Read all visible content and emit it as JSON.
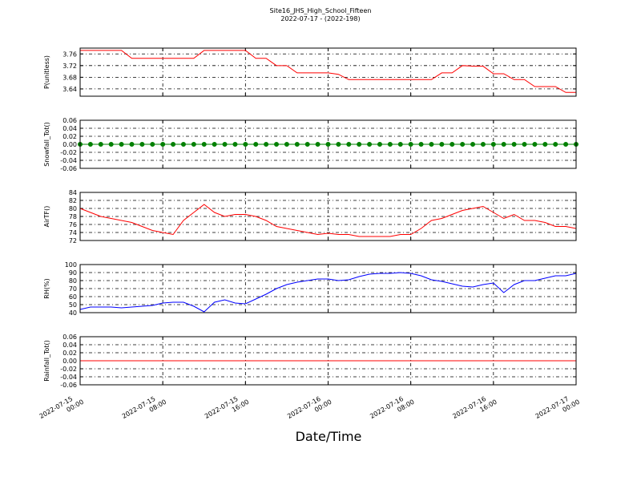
{
  "chart_data": {
    "type": "line",
    "title": "Site16_JHS_High_School_Fifteen",
    "subtitle": "2022-07-17 - (2022-198)",
    "xlabel": "Date/Time",
    "grid": true,
    "x": [
      "2022-07-15 00:00",
      "2022-07-15 01:00",
      "2022-07-15 02:00",
      "2022-07-15 03:00",
      "2022-07-15 04:00",
      "2022-07-15 05:00",
      "2022-07-15 06:00",
      "2022-07-15 07:00",
      "2022-07-15 08:00",
      "2022-07-15 09:00",
      "2022-07-15 10:00",
      "2022-07-15 11:00",
      "2022-07-15 12:00",
      "2022-07-15 13:00",
      "2022-07-15 14:00",
      "2022-07-15 15:00",
      "2022-07-15 16:00",
      "2022-07-15 17:00",
      "2022-07-15 18:00",
      "2022-07-15 19:00",
      "2022-07-15 20:00",
      "2022-07-15 21:00",
      "2022-07-15 22:00",
      "2022-07-15 23:00",
      "2022-07-16 00:00",
      "2022-07-16 01:00",
      "2022-07-16 02:00",
      "2022-07-16 03:00",
      "2022-07-16 04:00",
      "2022-07-16 05:00",
      "2022-07-16 06:00",
      "2022-07-16 07:00",
      "2022-07-16 08:00",
      "2022-07-16 09:00",
      "2022-07-16 10:00",
      "2022-07-16 11:00",
      "2022-07-16 12:00",
      "2022-07-16 13:00",
      "2022-07-16 14:00",
      "2022-07-16 15:00",
      "2022-07-16 16:00",
      "2022-07-16 17:00",
      "2022-07-16 18:00",
      "2022-07-16 19:00",
      "2022-07-16 20:00",
      "2022-07-16 21:00",
      "2022-07-16 22:00",
      "2022-07-16 23:00",
      "2022-07-17 00:00"
    ],
    "xlim": [
      "2022-07-15 00:00",
      "2022-07-17 00:00"
    ],
    "xticks": [
      {
        "value": "2022-07-15 00:00",
        "label": [
          "2022-07-15",
          "00:00"
        ]
      },
      {
        "value": "2022-07-15 08:00",
        "label": [
          "2022-07-15",
          "08:00"
        ]
      },
      {
        "value": "2022-07-15 16:00",
        "label": [
          "2022-07-15",
          "16:00"
        ]
      },
      {
        "value": "2022-07-16 00:00",
        "label": [
          "2022-07-16",
          "00:00"
        ]
      },
      {
        "value": "2022-07-16 08:00",
        "label": [
          "2022-07-16",
          "08:00"
        ]
      },
      {
        "value": "2022-07-16 16:00",
        "label": [
          "2022-07-16",
          "16:00"
        ]
      },
      {
        "value": "2022-07-17 00:00",
        "label": [
          "2022-07-17",
          "00:00"
        ]
      }
    ],
    "panels": [
      {
        "ylabel": "P(unitless)",
        "ylim": [
          3.615,
          3.78
        ],
        "yticks": [
          3.64,
          3.68,
          3.72,
          3.76
        ],
        "series": [
          {
            "color": "#ff0000",
            "values": [
              3.772,
              3.772,
              3.772,
              3.772,
              3.772,
              3.745,
              3.745,
              3.745,
              3.745,
              3.745,
              3.745,
              3.745,
              3.772,
              3.772,
              3.772,
              3.772,
              3.772,
              3.745,
              3.745,
              3.72,
              3.72,
              3.695,
              3.695,
              3.695,
              3.695,
              3.69,
              3.672,
              3.672,
              3.672,
              3.672,
              3.672,
              3.672,
              3.672,
              3.672,
              3.672,
              3.695,
              3.695,
              3.72,
              3.718,
              3.718,
              3.692,
              3.692,
              3.672,
              3.672,
              3.648,
              3.648,
              3.648,
              3.628,
              3.628
            ]
          }
        ]
      },
      {
        "ylabel": "Snowfall_Tot()",
        "ylim": [
          -0.06,
          0.06
        ],
        "yticks": [
          -0.06,
          -0.04,
          -0.02,
          {
            "value": 0,
            "label": "0.00"
          },
          0.02,
          0.04,
          0.06
        ],
        "series": [
          {
            "color": "#008000",
            "marker": "o",
            "values": [
              0,
              0,
              0,
              0,
              0,
              0,
              0,
              0,
              0,
              0,
              0,
              0,
              0,
              0,
              0,
              0,
              0,
              0,
              0,
              0,
              0,
              0,
              0,
              0,
              0,
              0,
              0,
              0,
              0,
              0,
              0,
              0,
              0,
              0,
              0,
              0,
              0,
              0,
              0,
              0,
              0,
              0,
              0,
              0,
              0,
              0,
              0,
              0,
              0
            ]
          }
        ]
      },
      {
        "ylabel": "AirTF()",
        "ylim": [
          72,
          84
        ],
        "yticks": [
          72,
          74,
          76,
          78,
          80,
          82,
          84
        ],
        "series": [
          {
            "color": "#ff0000",
            "values": [
              80,
              79,
              78,
              77.5,
              77,
              76.5,
              75.5,
              74.5,
              74,
              73.5,
              77,
              79,
              81,
              79,
              78,
              78.5,
              78.5,
              78,
              77,
              75.5,
              75,
              74.5,
              74,
              73.5,
              73.8,
              73.5,
              73.5,
              73,
              73,
              73,
              73,
              73.5,
              73.5,
              75,
              77,
              77.5,
              78.5,
              79.5,
              80,
              80.5,
              79,
              77.5,
              78.5,
              77,
              77,
              76.5,
              75.5,
              75.5,
              75
            ]
          }
        ]
      },
      {
        "ylabel": "RH(%)",
        "ylim": [
          40,
          100
        ],
        "yticks": [
          40,
          50,
          60,
          70,
          80,
          90,
          100
        ],
        "series": [
          {
            "color": "#0000ff",
            "values": [
              44,
              47,
              47,
              47,
              46,
              47,
              48,
              49,
              52,
              53,
              53,
              48,
              41,
              53,
              56,
              52,
              51,
              57,
              63,
              70,
              75,
              78,
              80,
              82,
              82,
              80,
              81,
              85,
              88,
              89,
              89,
              90,
              89,
              86,
              81,
              79,
              76,
              73,
              72,
              75,
              77,
              65,
              75,
              80,
              80,
              83,
              86,
              86,
              89
            ]
          }
        ]
      },
      {
        "ylabel": "Rainfall_Tot()",
        "ylim": [
          -0.06,
          0.06
        ],
        "yticks": [
          -0.06,
          -0.04,
          -0.02,
          {
            "value": 0,
            "label": "0.00"
          },
          0.02,
          0.04,
          0.06
        ],
        "series": [
          {
            "color": "#ff0000",
            "values": [
              0,
              0,
              0,
              0,
              0,
              0,
              0,
              0,
              0,
              0,
              0,
              0,
              0,
              0,
              0,
              0,
              0,
              0,
              0,
              0,
              0,
              0,
              0,
              0,
              0,
              0,
              0,
              0,
              0,
              0,
              0,
              0,
              0,
              0,
              0,
              0,
              0,
              0,
              0,
              0,
              0,
              0,
              0,
              0,
              0,
              0,
              0,
              0,
              0
            ]
          }
        ]
      }
    ]
  }
}
